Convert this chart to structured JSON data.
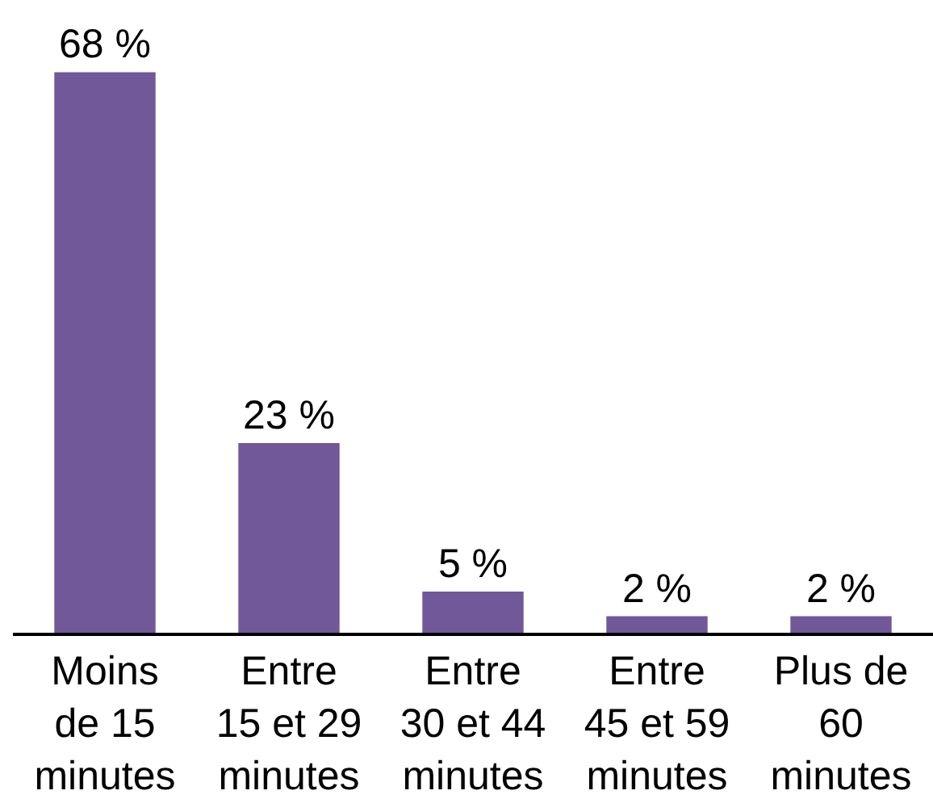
{
  "chart_data": {
    "type": "bar",
    "categories": [
      "Moins\nde 15\nminutes",
      "Entre\n15 et 29\nminutes",
      "Entre\n30 et 44\nminutes",
      "Entre\n45 et 59\nminutes",
      "Plus de\n60\nminutes"
    ],
    "values": [
      68,
      23,
      5,
      2,
      2
    ],
    "color": "#705899",
    "value_labels": [
      "68 %",
      "23 %",
      "5 %",
      "2 %",
      "2 %"
    ],
    "tick_labels": "x"
  }
}
